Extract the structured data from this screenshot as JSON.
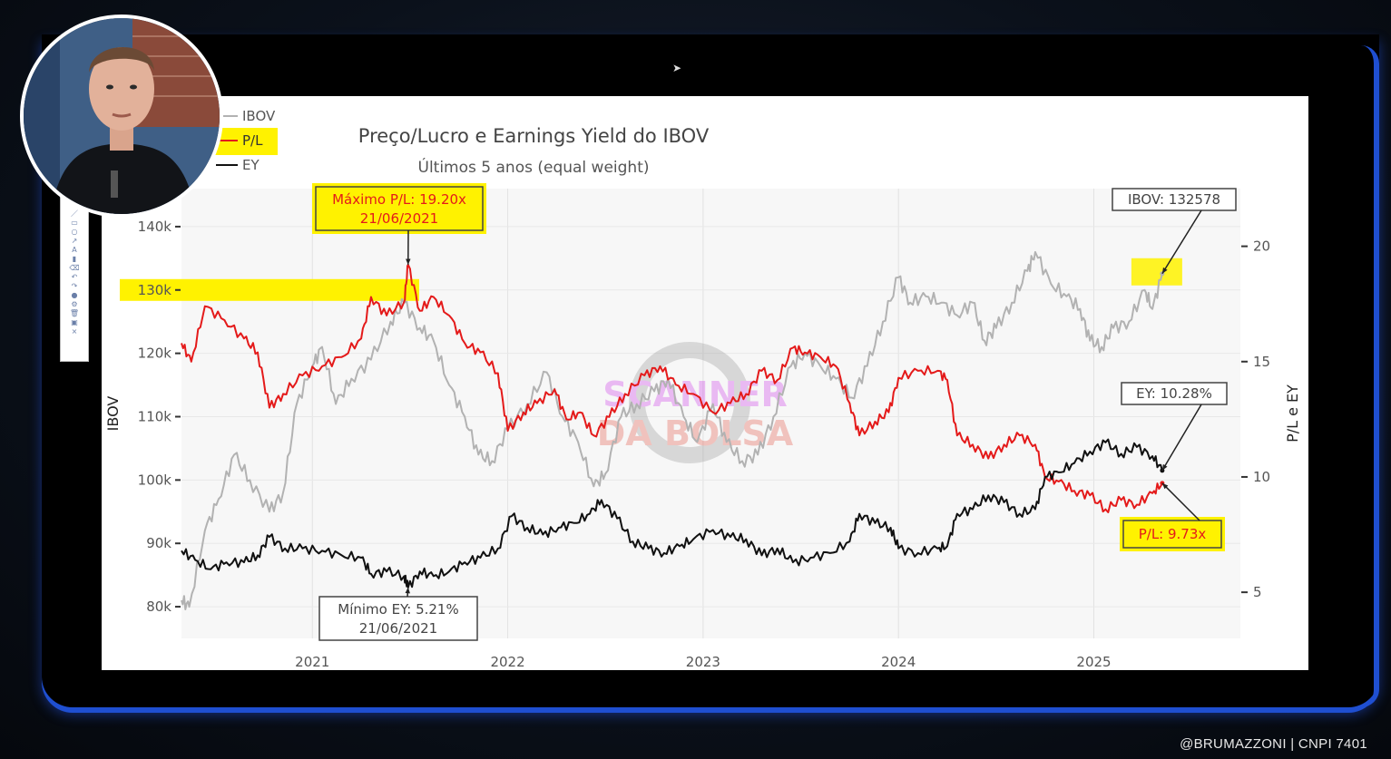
{
  "credit": "@BRUMAZZONI | CNPI 7401",
  "chart_data": {
    "type": "line",
    "title": "Preço/Lucro e Earnings Yield do IBOV",
    "subtitle": "Últimos 5 anos (equal weight)",
    "left_axis": {
      "label": "IBOV",
      "ticks": [
        "80k",
        "90k",
        "100k",
        "110k",
        "120k",
        "130k",
        "140k"
      ],
      "tick_values": [
        80000,
        90000,
        100000,
        110000,
        120000,
        130000,
        140000
      ],
      "range": [
        75000,
        146000
      ]
    },
    "right_axis": {
      "label": "P/L e EY",
      "ticks": [
        "5",
        "10",
        "15",
        "20"
      ],
      "tick_values": [
        5,
        10,
        15,
        20
      ],
      "range": [
        3,
        22.5
      ]
    },
    "x_axis": {
      "ticks": [
        "2021",
        "2022",
        "2023",
        "2024",
        "2025"
      ],
      "tick_values": [
        2021,
        2022,
        2023,
        2024,
        2025
      ],
      "range": [
        2020.33,
        2025.75
      ]
    },
    "legend": {
      "position": "top-left",
      "entries": [
        "IBOV",
        "P/L",
        "EY"
      ]
    },
    "colors": {
      "IBOV": "#b2b2b2",
      "P/L": "#e41a1a",
      "EY": "#111111",
      "highlight": "#fff200",
      "plot_bg": "#f7f7f7"
    },
    "series": [
      {
        "name": "IBOV",
        "axis": "left",
        "points": [
          [
            2020.33,
            81000
          ],
          [
            2020.37,
            80000
          ],
          [
            2020.45,
            92000
          ],
          [
            2020.52,
            97000
          ],
          [
            2020.6,
            104000
          ],
          [
            2020.68,
            100000
          ],
          [
            2020.78,
            95000
          ],
          [
            2020.85,
            98000
          ],
          [
            2020.92,
            112000
          ],
          [
            2021.0,
            118000
          ],
          [
            2021.05,
            121000
          ],
          [
            2021.12,
            112000
          ],
          [
            2021.2,
            116000
          ],
          [
            2021.3,
            119000
          ],
          [
            2021.4,
            125000
          ],
          [
            2021.47,
            128000
          ],
          [
            2021.55,
            124000
          ],
          [
            2021.62,
            122000
          ],
          [
            2021.7,
            115000
          ],
          [
            2021.78,
            110000
          ],
          [
            2021.85,
            104000
          ],
          [
            2021.92,
            103000
          ],
          [
            2022.0,
            108000
          ],
          [
            2022.1,
            112000
          ],
          [
            2022.2,
            117000
          ],
          [
            2022.28,
            110000
          ],
          [
            2022.36,
            106000
          ],
          [
            2022.44,
            99000
          ],
          [
            2022.5,
            101000
          ],
          [
            2022.58,
            110000
          ],
          [
            2022.66,
            112000
          ],
          [
            2022.75,
            114000
          ],
          [
            2022.82,
            116000
          ],
          [
            2022.9,
            110000
          ],
          [
            2022.97,
            106000
          ],
          [
            2023.05,
            112000
          ],
          [
            2023.12,
            106000
          ],
          [
            2023.2,
            103000
          ],
          [
            2023.28,
            104000
          ],
          [
            2023.36,
            110000
          ],
          [
            2023.45,
            118000
          ],
          [
            2023.52,
            120000
          ],
          [
            2023.6,
            118000
          ],
          [
            2023.68,
            116000
          ],
          [
            2023.76,
            113000
          ],
          [
            2023.84,
            118000
          ],
          [
            2023.92,
            125000
          ],
          [
            2024.0,
            132000
          ],
          [
            2024.06,
            128000
          ],
          [
            2024.14,
            129000
          ],
          [
            2024.22,
            128000
          ],
          [
            2024.3,
            126000
          ],
          [
            2024.38,
            128000
          ],
          [
            2024.44,
            122000
          ],
          [
            2024.5,
            124000
          ],
          [
            2024.58,
            128000
          ],
          [
            2024.66,
            133000
          ],
          [
            2024.7,
            136000
          ],
          [
            2024.78,
            131000
          ],
          [
            2024.86,
            129000
          ],
          [
            2024.93,
            127000
          ],
          [
            2024.98,
            122000
          ],
          [
            2025.04,
            121000
          ],
          [
            2025.1,
            124000
          ],
          [
            2025.18,
            125000
          ],
          [
            2025.26,
            130000
          ],
          [
            2025.3,
            127000
          ],
          [
            2025.35,
            132578
          ]
        ]
      },
      {
        "name": "P/L",
        "axis": "right",
        "points": [
          [
            2020.33,
            15.8
          ],
          [
            2020.38,
            15.0
          ],
          [
            2020.45,
            17.4
          ],
          [
            2020.55,
            16.8
          ],
          [
            2020.65,
            16.0
          ],
          [
            2020.72,
            15.4
          ],
          [
            2020.78,
            13.0
          ],
          [
            2020.85,
            13.6
          ],
          [
            2020.95,
            14.4
          ],
          [
            2021.05,
            14.8
          ],
          [
            2021.15,
            15.2
          ],
          [
            2021.25,
            16.0
          ],
          [
            2021.3,
            17.8
          ],
          [
            2021.38,
            17.0
          ],
          [
            2021.47,
            17.6
          ],
          [
            2021.49,
            19.2
          ],
          [
            2021.55,
            17.2
          ],
          [
            2021.62,
            17.8
          ],
          [
            2021.7,
            17.0
          ],
          [
            2021.78,
            15.8
          ],
          [
            2021.86,
            15.4
          ],
          [
            2021.95,
            14.5
          ],
          [
            2022.0,
            12.0
          ],
          [
            2022.08,
            12.8
          ],
          [
            2022.15,
            13.2
          ],
          [
            2022.24,
            13.8
          ],
          [
            2022.3,
            12.5
          ],
          [
            2022.37,
            12.8
          ],
          [
            2022.44,
            11.8
          ],
          [
            2022.52,
            12.6
          ],
          [
            2022.6,
            13.6
          ],
          [
            2022.7,
            14.4
          ],
          [
            2022.78,
            14.8
          ],
          [
            2022.86,
            14.0
          ],
          [
            2022.95,
            13.6
          ],
          [
            2023.05,
            12.8
          ],
          [
            2023.14,
            13.2
          ],
          [
            2023.22,
            13.6
          ],
          [
            2023.3,
            14.6
          ],
          [
            2023.38,
            14.2
          ],
          [
            2023.46,
            15.6
          ],
          [
            2023.52,
            15.4
          ],
          [
            2023.6,
            15.2
          ],
          [
            2023.68,
            14.8
          ],
          [
            2023.75,
            13.2
          ],
          [
            2023.8,
            11.8
          ],
          [
            2023.88,
            12.4
          ],
          [
            2023.95,
            12.8
          ],
          [
            2024.0,
            14.3
          ],
          [
            2024.1,
            14.6
          ],
          [
            2024.2,
            14.6
          ],
          [
            2024.25,
            14.2
          ],
          [
            2024.3,
            11.8
          ],
          [
            2024.38,
            11.4
          ],
          [
            2024.46,
            10.8
          ],
          [
            2024.54,
            11.4
          ],
          [
            2024.62,
            11.8
          ],
          [
            2024.7,
            11.4
          ],
          [
            2024.75,
            10.0
          ],
          [
            2024.82,
            9.8
          ],
          [
            2024.9,
            9.4
          ],
          [
            2024.98,
            9.2
          ],
          [
            2025.06,
            8.6
          ],
          [
            2025.14,
            9.0
          ],
          [
            2025.22,
            8.8
          ],
          [
            2025.3,
            9.3
          ],
          [
            2025.35,
            9.73
          ]
        ]
      },
      {
        "name": "EY",
        "axis": "right",
        "points": [
          [
            2020.33,
            6.8
          ],
          [
            2020.4,
            6.4
          ],
          [
            2020.48,
            6.0
          ],
          [
            2020.56,
            6.3
          ],
          [
            2020.65,
            6.3
          ],
          [
            2020.72,
            6.6
          ],
          [
            2020.78,
            7.4
          ],
          [
            2020.86,
            6.9
          ],
          [
            2020.95,
            6.9
          ],
          [
            2021.05,
            6.8
          ],
          [
            2021.15,
            6.6
          ],
          [
            2021.25,
            6.5
          ],
          [
            2021.3,
            5.8
          ],
          [
            2021.38,
            5.9
          ],
          [
            2021.47,
            5.7
          ],
          [
            2021.49,
            5.21
          ],
          [
            2021.55,
            5.9
          ],
          [
            2021.62,
            5.7
          ],
          [
            2021.7,
            5.9
          ],
          [
            2021.78,
            6.3
          ],
          [
            2021.86,
            6.5
          ],
          [
            2021.95,
            6.9
          ],
          [
            2022.02,
            8.3
          ],
          [
            2022.1,
            7.8
          ],
          [
            2022.18,
            7.5
          ],
          [
            2022.26,
            7.8
          ],
          [
            2022.34,
            8.0
          ],
          [
            2022.42,
            8.4
          ],
          [
            2022.48,
            9.0
          ],
          [
            2022.56,
            8.2
          ],
          [
            2022.64,
            7.2
          ],
          [
            2022.72,
            6.9
          ],
          [
            2022.8,
            6.7
          ],
          [
            2022.88,
            7.0
          ],
          [
            2022.95,
            7.3
          ],
          [
            2023.05,
            7.7
          ],
          [
            2023.14,
            7.4
          ],
          [
            2023.22,
            7.3
          ],
          [
            2023.3,
            6.6
          ],
          [
            2023.38,
            6.9
          ],
          [
            2023.46,
            6.3
          ],
          [
            2023.55,
            6.5
          ],
          [
            2023.65,
            6.7
          ],
          [
            2023.75,
            7.2
          ],
          [
            2023.8,
            8.4
          ],
          [
            2023.88,
            8.0
          ],
          [
            2023.96,
            7.8
          ],
          [
            2024.0,
            6.9
          ],
          [
            2024.1,
            6.7
          ],
          [
            2024.2,
            6.9
          ],
          [
            2024.25,
            7.0
          ],
          [
            2024.3,
            8.4
          ],
          [
            2024.38,
            8.6
          ],
          [
            2024.46,
            9.2
          ],
          [
            2024.54,
            8.9
          ],
          [
            2024.62,
            8.4
          ],
          [
            2024.7,
            8.6
          ],
          [
            2024.75,
            10.0
          ],
          [
            2024.82,
            10.2
          ],
          [
            2024.9,
            10.6
          ],
          [
            2024.98,
            11.1
          ],
          [
            2025.06,
            11.5
          ],
          [
            2025.14,
            11.0
          ],
          [
            2025.22,
            11.3
          ],
          [
            2025.3,
            10.9
          ],
          [
            2025.35,
            10.28
          ]
        ]
      }
    ],
    "annotations": [
      {
        "text": "Máximo P/L: 19.20x",
        "text2": "21/06/2021",
        "highlight": true,
        "x": 2021.49,
        "y": 19.2,
        "axis": "right"
      },
      {
        "text": "Mínimo EY: 5.21%",
        "text2": "21/06/2021",
        "highlight": false,
        "x": 2021.49,
        "y": 5.21,
        "axis": "right"
      },
      {
        "text": "IBOV: 132578",
        "highlight": false,
        "x": 2025.35,
        "y": 132578,
        "axis": "left"
      },
      {
        "text": "EY: 10.28%",
        "highlight": false,
        "x": 2025.35,
        "y": 10.28,
        "axis": "right"
      },
      {
        "text": "P/L: 9.73x",
        "highlight": true,
        "x": 2025.35,
        "y": 9.73,
        "axis": "right"
      }
    ],
    "highlighted_tick": "130k",
    "watermark": [
      "SCANNER",
      "DA BOLSA"
    ]
  }
}
